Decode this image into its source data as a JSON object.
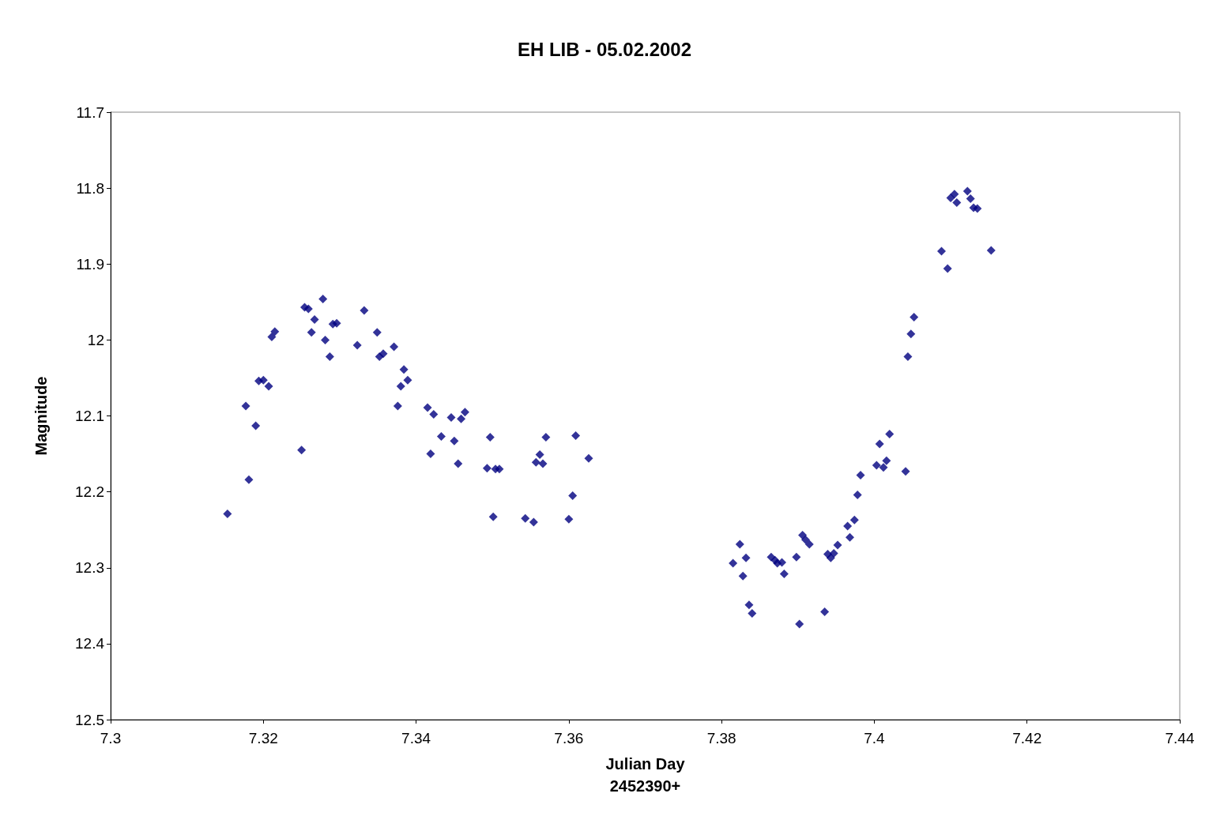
{
  "chart_data": {
    "type": "scatter",
    "title": "EH LIB - 05.02.2002",
    "xlabel": "Julian Day\n2452390+",
    "ylabel": "Magnitude",
    "x": [
      7.3153,
      7.3177,
      7.3181,
      7.319,
      7.3194,
      7.32,
      7.3207,
      7.3211,
      7.3215,
      7.325,
      7.3254,
      7.3259,
      7.3263,
      7.3267,
      7.3278,
      7.3281,
      7.3287,
      7.3291,
      7.3296,
      7.3323,
      7.3332,
      7.3349,
      7.3352,
      7.3357,
      7.3371,
      7.3376,
      7.338,
      7.3384,
      7.3389,
      7.3415,
      7.3419,
      7.3423,
      7.3433,
      7.3446,
      7.345,
      7.3455,
      7.3459,
      7.3464,
      7.3493,
      7.3497,
      7.3501,
      7.3504,
      7.3509,
      7.3543,
      7.3554,
      7.3557,
      7.3562,
      7.3566,
      7.357,
      7.36,
      7.3605,
      7.3609,
      7.3626,
      7.3815,
      7.3824,
      7.3828,
      7.3832,
      7.3836,
      7.384,
      7.3865,
      7.387,
      7.3873,
      7.3879,
      7.3882,
      7.3898,
      7.3902,
      7.3906,
      7.391,
      7.3915,
      7.3935,
      7.3939,
      7.3943,
      7.3947,
      7.3952,
      7.3965,
      7.3968,
      7.3974,
      7.3978,
      7.3982,
      7.4003,
      7.4007,
      7.4012,
      7.4016,
      7.402,
      7.4041,
      7.4044,
      7.4048,
      7.4052,
      7.4088,
      7.4096,
      7.41,
      7.4105,
      7.4108,
      7.4122,
      7.4126,
      7.413,
      7.4135,
      7.4153
    ],
    "series": [
      {
        "color": "#000080",
        "values": [
          12.229,
          12.087,
          12.184,
          12.113,
          12.054,
          12.053,
          12.061,
          11.996,
          11.989,
          12.145,
          11.957,
          11.959,
          11.99,
          11.973,
          11.946,
          12.0,
          12.022,
          11.979,
          11.978,
          12.007,
          11.961,
          11.99,
          12.022,
          12.018,
          12.009,
          12.087,
          12.061,
          12.039,
          12.053,
          12.089,
          12.15,
          12.098,
          12.127,
          12.102,
          12.133,
          12.163,
          12.104,
          12.095,
          12.169,
          12.128,
          12.233,
          12.17,
          12.17,
          12.235,
          12.24,
          12.161,
          12.151,
          12.163,
          12.128,
          12.236,
          12.205,
          12.126,
          12.156,
          12.294,
          12.269,
          12.311,
          12.287,
          12.349,
          12.36,
          12.286,
          12.29,
          12.294,
          12.293,
          12.308,
          12.286,
          12.374,
          12.257,
          12.263,
          12.269,
          12.358,
          12.282,
          12.287,
          12.281,
          12.27,
          12.245,
          12.26,
          12.237,
          12.204,
          12.178,
          12.165,
          12.137,
          12.168,
          12.159,
          12.124,
          12.173,
          12.022,
          11.992,
          11.97,
          11.883,
          11.906,
          11.813,
          11.808,
          11.819,
          11.804,
          11.814,
          11.826,
          11.827,
          11.882
        ]
      }
    ],
    "xlim": [
      7.3,
      7.44
    ],
    "xticks": [
      7.3,
      7.32,
      7.34,
      7.36,
      7.38,
      7.4,
      7.42,
      7.44
    ],
    "ylim": [
      12.5,
      11.7
    ],
    "yticks": [
      11.7,
      11.8,
      11.9,
      12,
      12.1,
      12.2,
      12.3,
      12.4,
      12.5
    ],
    "marker": "diamond",
    "grid": false
  }
}
